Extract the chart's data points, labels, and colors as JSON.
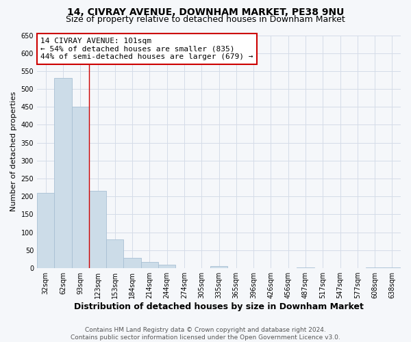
{
  "title": "14, CIVRAY AVENUE, DOWNHAM MARKET, PE38 9NU",
  "subtitle": "Size of property relative to detached houses in Downham Market",
  "xlabel": "Distribution of detached houses by size in Downham Market",
  "ylabel": "Number of detached properties",
  "footer_line1": "Contains HM Land Registry data © Crown copyright and database right 2024.",
  "footer_line2": "Contains public sector information licensed under the Open Government Licence v3.0.",
  "annotation_line1": "14 CIVRAY AVENUE: 101sqm",
  "annotation_line2": "← 54% of detached houses are smaller (835)",
  "annotation_line3": "44% of semi-detached houses are larger (679) →",
  "bar_color": "#ccdce8",
  "bar_edge_color": "#a8c0d4",
  "vline_color": "#cc0000",
  "grid_color": "#d4dce8",
  "background_color": "#f5f7fa",
  "annot_box_color": "white",
  "annot_edge_color": "#cc0000",
  "categories": [
    "32sqm",
    "62sqm",
    "93sqm",
    "123sqm",
    "153sqm",
    "184sqm",
    "214sqm",
    "244sqm",
    "274sqm",
    "305sqm",
    "335sqm",
    "365sqm",
    "396sqm",
    "426sqm",
    "456sqm",
    "487sqm",
    "517sqm",
    "547sqm",
    "577sqm",
    "608sqm",
    "638sqm"
  ],
  "values": [
    210,
    530,
    450,
    215,
    80,
    28,
    18,
    10,
    0,
    0,
    5,
    0,
    0,
    0,
    0,
    2,
    0,
    0,
    0,
    2,
    2
  ],
  "ylim": [
    0,
    650
  ],
  "yticks": [
    0,
    50,
    100,
    150,
    200,
    250,
    300,
    350,
    400,
    450,
    500,
    550,
    600,
    650
  ],
  "vline_x": 2.5,
  "title_fontsize": 10,
  "subtitle_fontsize": 9,
  "xlabel_fontsize": 9,
  "ylabel_fontsize": 8,
  "tick_fontsize": 7,
  "annot_fontsize": 8,
  "footer_fontsize": 6.5
}
